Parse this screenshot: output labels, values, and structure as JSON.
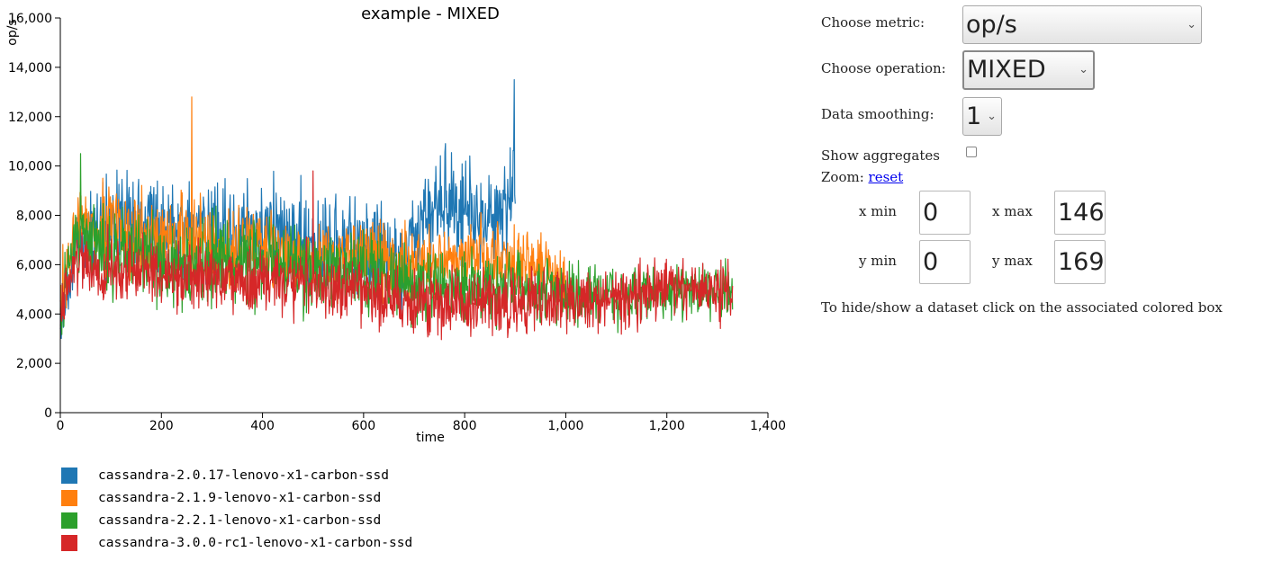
{
  "chart_data": {
    "type": "line",
    "title": "example - MIXED",
    "xlabel": "time",
    "ylabel": "op/s",
    "xlim": [
      0,
      1400
    ],
    "ylim": [
      0,
      16000
    ],
    "x_ticks": [
      "0",
      "200",
      "400",
      "600",
      "800",
      "1,000",
      "1,200",
      "1,400"
    ],
    "y_ticks": [
      "0",
      "2,000",
      "4,000",
      "6,000",
      "8,000",
      "10,000",
      "12,000",
      "14,000",
      "16,000"
    ],
    "grid": false,
    "legend_position": "bottom-left",
    "series": [
      {
        "name": "cassandra-2.0.17-lenovo-x1-carbon-ssd",
        "color": "#1f77b4",
        "x_end": 900,
        "mean": [
          [
            0,
            3500
          ],
          [
            30,
            6500
          ],
          [
            100,
            7800
          ],
          [
            200,
            7600
          ],
          [
            300,
            7300
          ],
          [
            400,
            7400
          ],
          [
            500,
            6800
          ],
          [
            600,
            6700
          ],
          [
            680,
            6200
          ],
          [
            720,
            8000
          ],
          [
            760,
            8400
          ],
          [
            800,
            8300
          ],
          [
            850,
            7800
          ],
          [
            900,
            9000
          ]
        ],
        "spread": [
          [
            0,
            1500
          ],
          [
            100,
            2800
          ],
          [
            400,
            2800
          ],
          [
            700,
            3000
          ],
          [
            900,
            3200
          ]
        ],
        "peak": [
          898,
          13500
        ]
      },
      {
        "name": "cassandra-2.1.9-lenovo-x1-carbon-ssd",
        "color": "#ff7f0e",
        "x_end": 1000,
        "mean": [
          [
            0,
            4500
          ],
          [
            30,
            7800
          ],
          [
            100,
            7400
          ],
          [
            200,
            7000
          ],
          [
            300,
            6900
          ],
          [
            400,
            6700
          ],
          [
            500,
            6300
          ],
          [
            600,
            6400
          ],
          [
            700,
            5900
          ],
          [
            800,
            6400
          ],
          [
            900,
            6100
          ],
          [
            1000,
            5600
          ]
        ],
        "spread": [
          [
            0,
            2000
          ],
          [
            100,
            2500
          ],
          [
            500,
            2200
          ],
          [
            1000,
            1900
          ]
        ],
        "peak": [
          260,
          12800
        ]
      },
      {
        "name": "cassandra-2.2.1-lenovo-x1-carbon-ssd",
        "color": "#2ca02c",
        "x_end": 1330,
        "mean": [
          [
            0,
            4200
          ],
          [
            30,
            7200
          ],
          [
            100,
            6500
          ],
          [
            200,
            6000
          ],
          [
            300,
            6200
          ],
          [
            400,
            6000
          ],
          [
            500,
            5800
          ],
          [
            600,
            5700
          ],
          [
            700,
            5100
          ],
          [
            800,
            5100
          ],
          [
            900,
            5100
          ],
          [
            1000,
            4800
          ],
          [
            1100,
            4700
          ],
          [
            1200,
            4900
          ],
          [
            1330,
            5000
          ]
        ],
        "spread": [
          [
            0,
            2000
          ],
          [
            100,
            2400
          ],
          [
            600,
            2400
          ],
          [
            1000,
            1800
          ],
          [
            1330,
            1600
          ]
        ],
        "peak": [
          40,
          10500
        ]
      },
      {
        "name": "cassandra-3.0.0-rc1-lenovo-x1-carbon-ssd",
        "color": "#d62728",
        "x_end": 1330,
        "mean": [
          [
            0,
            4200
          ],
          [
            30,
            6000
          ],
          [
            100,
            5800
          ],
          [
            200,
            5600
          ],
          [
            300,
            5500
          ],
          [
            400,
            5400
          ],
          [
            500,
            5300
          ],
          [
            600,
            5000
          ],
          [
            700,
            4400
          ],
          [
            800,
            4300
          ],
          [
            900,
            4500
          ],
          [
            1000,
            4500
          ],
          [
            1100,
            4600
          ],
          [
            1200,
            5000
          ],
          [
            1330,
            5000
          ]
        ],
        "spread": [
          [
            0,
            1800
          ],
          [
            200,
            2000
          ],
          [
            600,
            2000
          ],
          [
            1000,
            1900
          ],
          [
            1330,
            1700
          ]
        ],
        "peak": [
          500,
          9800
        ]
      }
    ]
  },
  "controls": {
    "metric_label": "Choose metric:",
    "metric_value": "op/s",
    "operation_label": "Choose operation:",
    "operation_value": "MIXED",
    "smoothing_label": "Data smoothing:",
    "smoothing_value": "1",
    "aggregates_label": "Show aggregates",
    "aggregates_checked": false,
    "zoom_label": "Zoom:",
    "zoom_reset": "reset",
    "xmin_label": "x min",
    "xmin_value": "0",
    "xmax_label": "x max",
    "xmax_value": "146",
    "ymin_label": "y min",
    "ymin_value": "0",
    "ymax_label": "y max",
    "ymax_value": "169",
    "hint": "To hide/show a dataset click on the associated colored box"
  },
  "icons": {
    "select_chevron": "chevron-down-icon"
  }
}
